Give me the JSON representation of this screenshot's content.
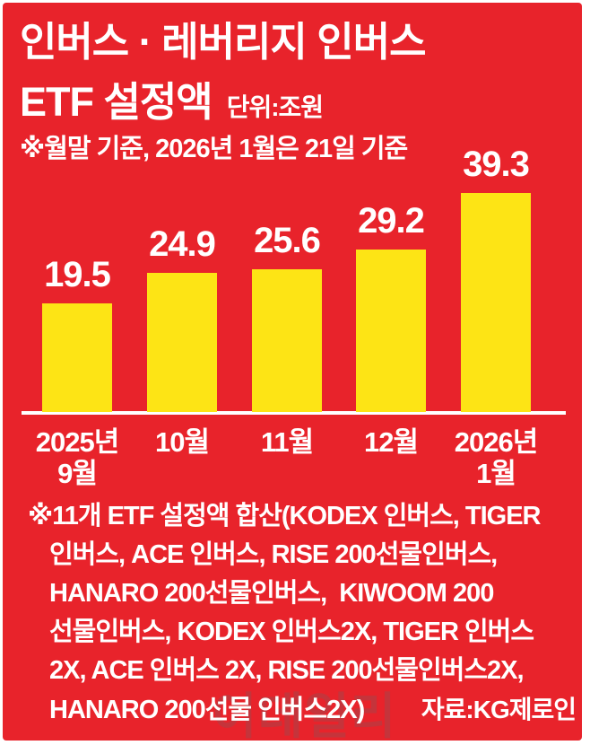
{
  "title": {
    "line1": "인버스 · 레버리지 인버스",
    "line2": "ETF 설정액",
    "unit": "단위:조원",
    "note": "※월말 기준, 2026년 1월은 21일 기준"
  },
  "chart_data": {
    "type": "bar",
    "title": "인버스 · 레버리지 인버스 ETF 설정액",
    "unit_label": "단위:조원",
    "basis_note": "※월말 기준, 2026년 1월은 21일 기준",
    "categories": [
      [
        "2025년",
        "9월"
      ],
      [
        "10월"
      ],
      [
        "11월"
      ],
      [
        "12월"
      ],
      [
        "2026년",
        "1월"
      ]
    ],
    "values": [
      19.5,
      24.9,
      25.6,
      29.2,
      39.3
    ],
    "ylim": [
      0,
      42
    ],
    "grid": false,
    "legend": "none",
    "bar_color": "#fde415",
    "background_color": "#e8232b",
    "text_color": "#ffffff"
  },
  "footnote": {
    "lines": [
      "※11개 ETF 설정액 합산(KODEX 인버스, TIGER",
      "인버스, ACE 인버스, RISE 200선물인버스,",
      "HANARO 200선물인버스,  KIWOOM 200",
      "선물인버스, KODEX 인버스2X, TIGER 인버스",
      "2X, ACE 인버스 2X, RISE 200선물인버스2X,",
      "HANARO 200선물 인버스2X)"
    ],
    "source": "자료:KG제로인"
  },
  "watermark": "이데일리",
  "colors": {
    "background": "#e8232b",
    "bar": "#fde415",
    "text": "#ffffff",
    "watermark": "#c5343b"
  }
}
